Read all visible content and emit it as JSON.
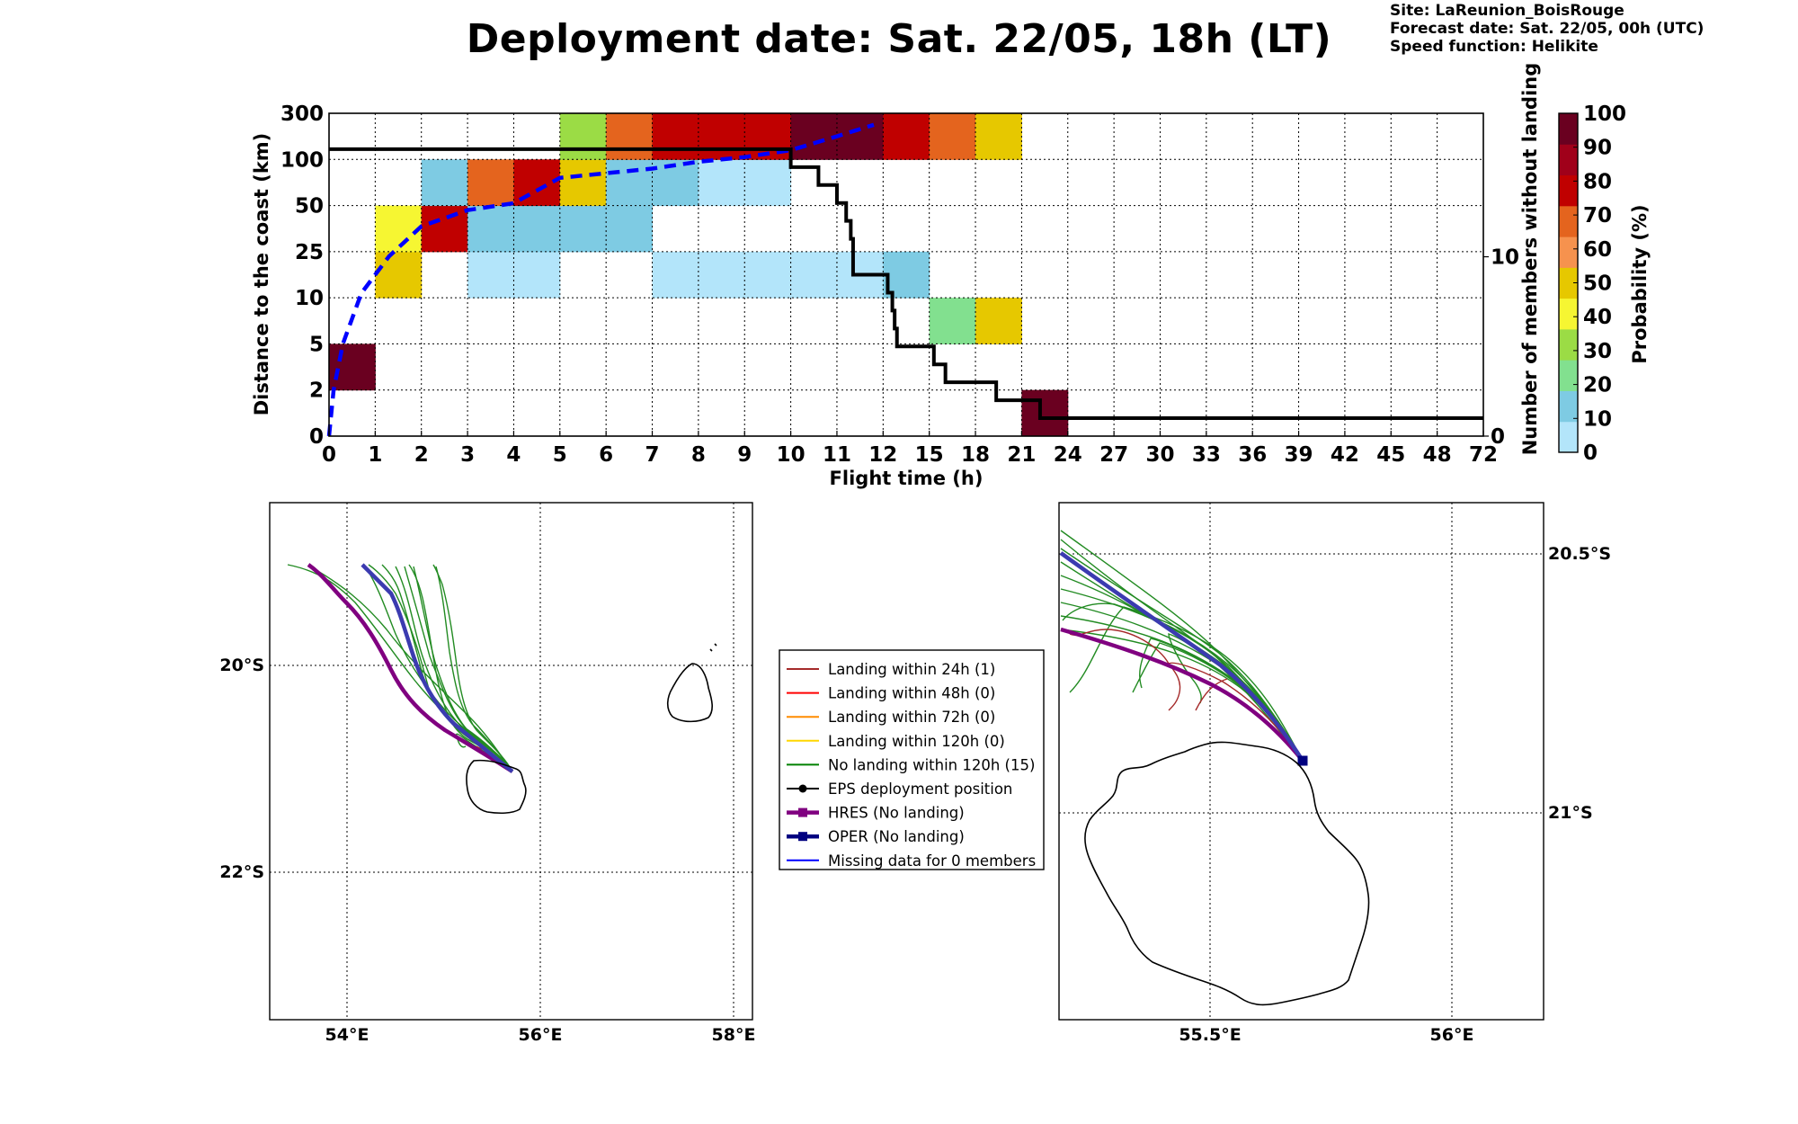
{
  "title": "Deployment date: Sat. 22/05, 18h (LT)",
  "info": {
    "site": "Site: LaReunion_BoisRouge",
    "forecast": "Forecast date: Sat. 22/05, 00h (UTC)",
    "speed": "Speed function: Helikite"
  },
  "chart_data": [
    {
      "type": "heatmap",
      "xlabel": "Flight time (h)",
      "ylabel": "Distance to the coast (km)",
      "y2label": "Number of members without landing",
      "x_ticks": [
        "0",
        "1",
        "2",
        "3",
        "4",
        "5",
        "6",
        "7",
        "8",
        "9",
        "10",
        "11",
        "12",
        "15",
        "18",
        "21",
        "24",
        "27",
        "30",
        "33",
        "36",
        "39",
        "42",
        "45",
        "48",
        "72"
      ],
      "y_ticks": [
        "0",
        "2",
        "5",
        "10",
        "25",
        "50",
        "100",
        "300"
      ],
      "y2_ticks": [
        "0",
        "10"
      ],
      "y2_range": [
        0,
        18
      ],
      "colorbar": {
        "label": "Probability (%)",
        "ticks": [
          "0",
          "10",
          "20",
          "30",
          "40",
          "50",
          "60",
          "70",
          "80",
          "90",
          "100"
        ],
        "colors": [
          "#b3e5fa",
          "#7ecbe3",
          "#82e08f",
          "#9bdc45",
          "#f6f632",
          "#e6c800",
          "#f6924e",
          "#e4641e",
          "#c00000",
          "#a0001a",
          "#6a0020"
        ]
      },
      "cells": [
        {
          "x": 0,
          "y": 1,
          "p": 100
        },
        {
          "x": 1,
          "y": 3,
          "p": 50
        },
        {
          "x": 1,
          "y": 4,
          "p": 40
        },
        {
          "x": 2,
          "y": 4,
          "p": 80
        },
        {
          "x": 2,
          "y": 5,
          "p": 10
        },
        {
          "x": 3,
          "y": 3,
          "p": 0
        },
        {
          "x": 3,
          "y": 4,
          "p": 10
        },
        {
          "x": 3,
          "y": 5,
          "p": 70
        },
        {
          "x": 4,
          "y": 3,
          "p": 0
        },
        {
          "x": 4,
          "y": 4,
          "p": 10
        },
        {
          "x": 4,
          "y": 5,
          "p": 80
        },
        {
          "x": 5,
          "y": 4,
          "p": 10
        },
        {
          "x": 5,
          "y": 5,
          "p": 50
        },
        {
          "x": 5,
          "y": 6,
          "p": 30
        },
        {
          "x": 6,
          "y": 4,
          "p": 10
        },
        {
          "x": 6,
          "y": 5,
          "p": 10
        },
        {
          "x": 6,
          "y": 6,
          "p": 70
        },
        {
          "x": 7,
          "y": 3,
          "p": 0
        },
        {
          "x": 7,
          "y": 5,
          "p": 10
        },
        {
          "x": 7,
          "y": 6,
          "p": 80
        },
        {
          "x": 8,
          "y": 3,
          "p": 0
        },
        {
          "x": 8,
          "y": 5,
          "p": 0
        },
        {
          "x": 8,
          "y": 6,
          "p": 80
        },
        {
          "x": 9,
          "y": 3,
          "p": 0
        },
        {
          "x": 9,
          "y": 5,
          "p": 0
        },
        {
          "x": 9,
          "y": 6,
          "p": 80
        },
        {
          "x": 10,
          "y": 3,
          "p": 0
        },
        {
          "x": 10,
          "y": 6,
          "p": 100
        },
        {
          "x": 11,
          "y": 3,
          "p": 0
        },
        {
          "x": 11,
          "y": 6,
          "p": 100
        },
        {
          "x": 12,
          "y": 3,
          "p": 10
        },
        {
          "x": 12,
          "y": 6,
          "p": 80
        },
        {
          "x": 13,
          "y": 2,
          "p": 20
        },
        {
          "x": 13,
          "y": 6,
          "p": 70
        },
        {
          "x": 14,
          "y": 2,
          "p": 50
        },
        {
          "x": 14,
          "y": 6,
          "p": 50
        },
        {
          "x": 15,
          "y": 0,
          "p": 100
        }
      ],
      "members_without_landing": {
        "x": [
          0,
          9.7,
          10,
          10.6,
          11,
          11.2,
          11.3,
          11.35,
          12,
          12.1,
          12.2,
          12.25,
          12.3,
          12.5,
          13.1,
          13.35,
          14,
          14.45,
          15.1,
          15.4
        ],
        "y": [
          16,
          16,
          15,
          14,
          13,
          12,
          11,
          9,
          9,
          8,
          7,
          6,
          5,
          5,
          4,
          3,
          3,
          2,
          2,
          1
        ]
      },
      "median_distance_curve": {
        "color": "#0000ff",
        "style": "dashed"
      }
    },
    {
      "type": "map",
      "x_ticks": [
        "54°E",
        "56°E",
        "58°E"
      ],
      "y_ticks": [
        "20°S",
        "22°S"
      ]
    },
    {
      "type": "map",
      "x_ticks": [
        "55.5°E",
        "56°E"
      ],
      "y_ticks": [
        "20.5°S",
        "21°S"
      ]
    }
  ],
  "legend": [
    {
      "label": "Landing within 24h (1)",
      "color": "#a52a2a",
      "marker": "none"
    },
    {
      "label": "Landing within 48h (0)",
      "color": "#ff0000",
      "marker": "none"
    },
    {
      "label": "Landing within 72h (0)",
      "color": "#ff8c00",
      "marker": "none"
    },
    {
      "label": "Landing within 120h (0)",
      "color": "#ffd700",
      "marker": "none"
    },
    {
      "label": "No landing within 120h (15)",
      "color": "#008000",
      "marker": "none"
    },
    {
      "label": "EPS deployment position",
      "color": "#000000",
      "marker": "circle"
    },
    {
      "label": "HRES (No landing)",
      "color": "#800080",
      "marker": "square"
    },
    {
      "label": "OPER (No landing)",
      "color": "#000080",
      "marker": "square"
    },
    {
      "label": "Missing data for 0 members",
      "color": "#0000ff",
      "marker": "none"
    }
  ]
}
